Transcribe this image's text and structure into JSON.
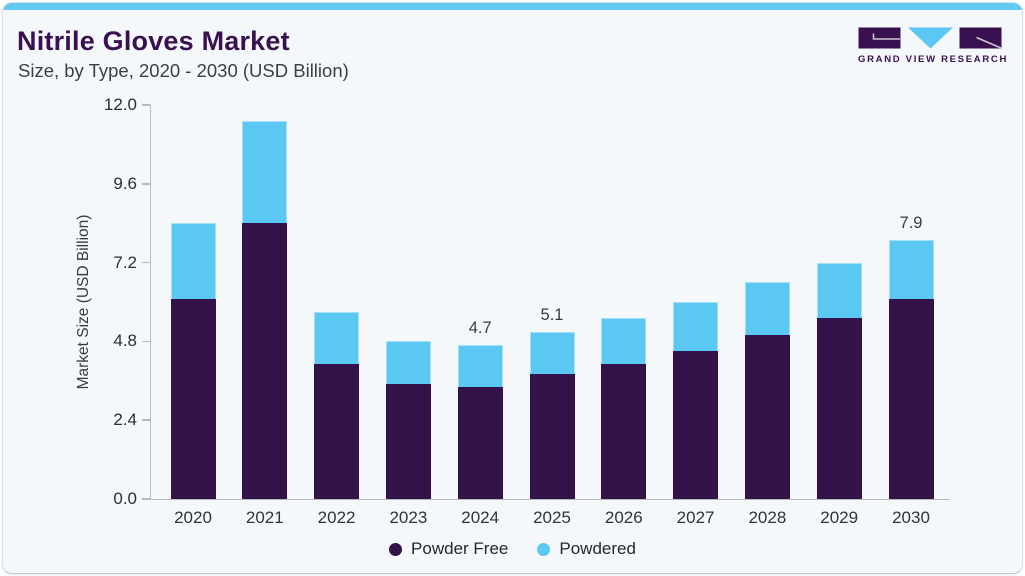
{
  "page": {
    "background": "#ffffff"
  },
  "card": {
    "background": "#f4f8fb",
    "border_color": "#d6dfe8",
    "accent_bar_color": "#61c9f2"
  },
  "header": {
    "title": "Nitrile Gloves Market",
    "subtitle": "Size, by Type, 2020 - 2030 (USD Billion)",
    "title_color": "#3a1150"
  },
  "logo": {
    "text": "GRAND VIEW RESEARCH",
    "purple": "#3a1150",
    "blue": "#5ac8f2",
    "mark_line_color": "#cac5d3"
  },
  "chart_data": {
    "type": "bar",
    "stacked": true,
    "title": "Nitrile Gloves Market Size, by Type, 2020 - 2030 (USD Billion)",
    "xlabel": "",
    "ylabel": "Market Size (USD Billion)",
    "ylim": [
      0,
      12
    ],
    "ytick_labels": [
      "0.0",
      "2.4",
      "4.8",
      "7.2",
      "9.6",
      "12.0"
    ],
    "grid": false,
    "legend_position": "bottom",
    "axis_color": "#b3bac3",
    "categories": [
      "2020",
      "2021",
      "2022",
      "2023",
      "2024",
      "2025",
      "2026",
      "2027",
      "2028",
      "2029",
      "2030"
    ],
    "series": [
      {
        "name": "Powder Free",
        "color": "#331249",
        "values": [
          6.1,
          8.4,
          4.1,
          3.5,
          3.4,
          3.8,
          4.1,
          4.5,
          5.0,
          5.5,
          6.1
        ]
      },
      {
        "name": "Powdered",
        "color": "#5ac8f2",
        "values": [
          2.3,
          3.1,
          1.6,
          1.3,
          1.3,
          1.3,
          1.4,
          1.5,
          1.6,
          1.7,
          1.8
        ]
      }
    ],
    "totals": [
      8.4,
      11.5,
      5.7,
      4.8,
      4.7,
      5.1,
      5.5,
      6.0,
      6.6,
      7.2,
      7.9
    ],
    "visible_total_labels": {
      "2024": "4.7",
      "2025": "5.1",
      "2030": "7.9"
    }
  }
}
